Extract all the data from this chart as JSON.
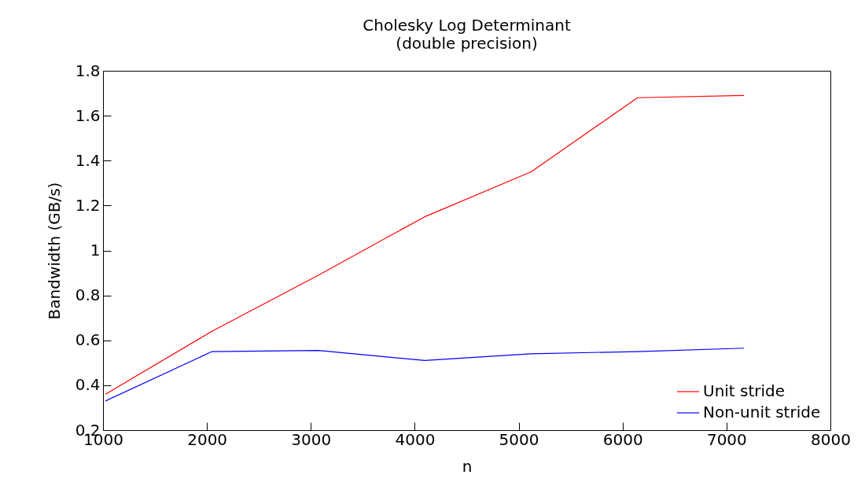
{
  "chart_data": {
    "type": "line",
    "title": "Cholesky Log Determinant",
    "subtitle": "(double precision)",
    "xlabel": "n",
    "ylabel": "Bandwidth (GB/s)",
    "x": [
      1024,
      2048,
      3072,
      4096,
      5120,
      6144,
      7168
    ],
    "series": [
      {
        "name": "Unit stride",
        "color": "#ff0000",
        "values": [
          0.36,
          0.64,
          0.89,
          1.15,
          1.35,
          1.68,
          1.69
        ]
      },
      {
        "name": "Non-unit stride",
        "color": "#0000ff",
        "values": [
          0.33,
          0.55,
          0.555,
          0.51,
          0.54,
          0.55,
          0.565
        ]
      }
    ],
    "xlim": [
      1000,
      8000
    ],
    "xticks": [
      1000,
      2000,
      3000,
      4000,
      5000,
      6000,
      7000,
      8000
    ],
    "ylim": [
      0.2,
      1.8
    ],
    "yticks": [
      0.2,
      0.4,
      0.6,
      0.8,
      1,
      1.2,
      1.4,
      1.6,
      1.8
    ],
    "legend": "bottom right",
    "grid": false,
    "marker": "none",
    "line_style": "solid"
  }
}
